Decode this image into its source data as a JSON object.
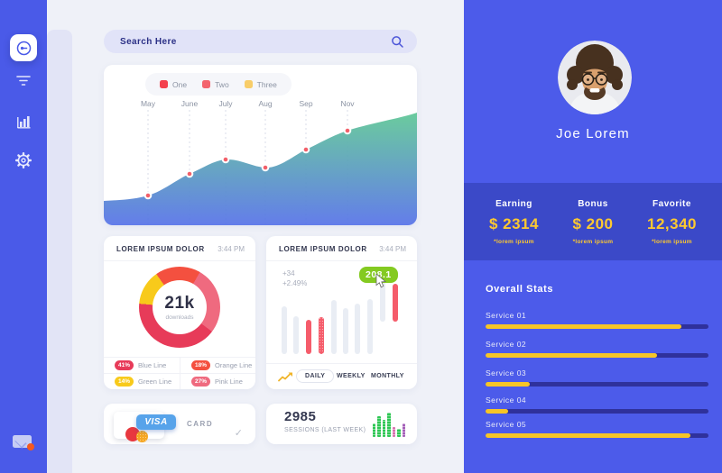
{
  "colors": {
    "rail_blue": "#4a5ae8",
    "panel_blue": "#4c5bea",
    "band_blue": "#3b49c8",
    "track_navy": "#2f319c",
    "accent_yellow": "#f6c527",
    "badge_green": "#84ca21",
    "bar_red": "#f55c6b",
    "area_green": "#5fc592",
    "area_blue": "#5672e8"
  },
  "sidebar": {
    "icons": [
      "dashboard",
      "filter",
      "bar-chart",
      "settings",
      "mail"
    ]
  },
  "search": {
    "placeholder": "Search Here"
  },
  "main_chart": {
    "legend": [
      {
        "label": "One",
        "color": "#f4414e"
      },
      {
        "label": "Two",
        "color": "#f3646d"
      },
      {
        "label": "Three",
        "color": "#f8cd69"
      }
    ],
    "months": [
      "May",
      "June",
      "July",
      "Aug",
      "Sep",
      "Nov"
    ]
  },
  "donut_card": {
    "title": "LOREM IPSUM DOLOR",
    "time": "3:44 PM",
    "center_value": "21k",
    "center_label": "downloads",
    "legend": [
      {
        "pct": "41%",
        "label": "Blue Line",
        "color": "#e73b59"
      },
      {
        "pct": "18%",
        "label": "Orange Line",
        "color": "#f4503f"
      },
      {
        "pct": "14%",
        "label": "Green Line",
        "color": "#f8ca1b"
      },
      {
        "pct": "27%",
        "label": "Pink Line",
        "color": "#ef6a7f"
      }
    ]
  },
  "bars_card": {
    "title": "LOREM IPSUM DOLOR",
    "time": "3:44 PM",
    "delta": "+34",
    "delta_pct": "+2.49%",
    "badge": "208.1",
    "tabs": [
      "DAILY",
      "WEEKLY",
      "MONTHLY"
    ],
    "active_tab": "DAILY"
  },
  "visa_card": {
    "brand": "VISA",
    "label": "CARD"
  },
  "sessions_card": {
    "value": "2985",
    "label": "SESSIONS (LAST WEEK)"
  },
  "profile": {
    "name": "Joe Lorem",
    "stats": [
      {
        "label": "Earning",
        "value": "$ 2314",
        "note": "*lorem ipsum"
      },
      {
        "label": "Bonus",
        "value": "$ 200",
        "note": "*lorem ipsum"
      },
      {
        "label": "Favorite",
        "value": "12,340",
        "note": "*lorem ipsum"
      }
    ]
  },
  "overall_stats": {
    "title": "Overall Stats",
    "services": [
      {
        "label": "Service 01",
        "pct": 88
      },
      {
        "label": "Service 02",
        "pct": 77
      },
      {
        "label": "Service 03",
        "pct": 20
      },
      {
        "label": "Service 04",
        "pct": 10
      },
      {
        "label": "Service 05",
        "pct": 92
      }
    ]
  },
  "chart_data": [
    {
      "type": "area",
      "title": "monthly trend",
      "categories": [
        "May",
        "June",
        "July",
        "Aug",
        "Sep",
        "Nov"
      ],
      "values": [
        26,
        45,
        57,
        50,
        66,
        82
      ],
      "ylim": [
        0,
        100
      ],
      "legend": [
        "One",
        "Two",
        "Three"
      ],
      "legend_position": "top"
    },
    {
      "type": "pie",
      "title": "21k downloads",
      "categories": [
        "Blue Line",
        "Orange Line",
        "Green Line",
        "Pink Line"
      ],
      "values": [
        41,
        18,
        14,
        27
      ]
    },
    {
      "type": "bar",
      "title": "daily sessions (208.1 highlighted)",
      "values": [
        53,
        42,
        38,
        41,
        60,
        51,
        56,
        61,
        88,
        81
      ],
      "highlight_indexes": [
        2,
        3,
        9
      ]
    },
    {
      "type": "bar",
      "title": "sessions last week",
      "values": [
        15,
        23,
        19,
        27,
        11,
        9,
        15
      ]
    },
    {
      "type": "bar",
      "title": "Overall Stats services",
      "categories": [
        "Service 01",
        "Service 02",
        "Service 03",
        "Service 04",
        "Service 05"
      ],
      "values": [
        88,
        77,
        20,
        10,
        92
      ],
      "orientation": "horizontal",
      "ylim": [
        0,
        100
      ]
    }
  ]
}
